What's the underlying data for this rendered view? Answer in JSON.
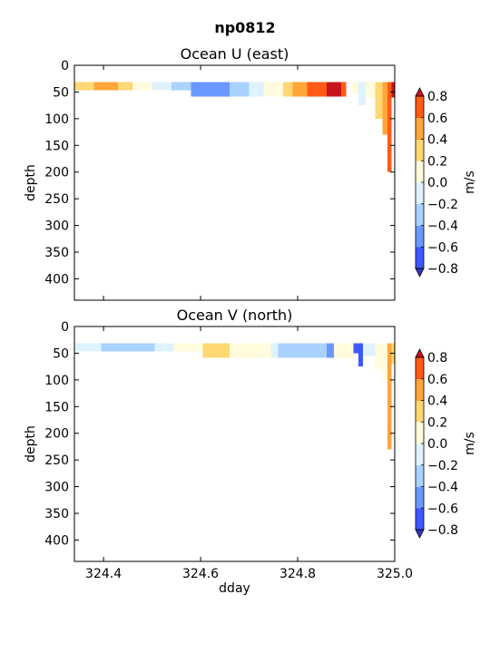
{
  "figure": {
    "suptitle": "np0812"
  },
  "colors": {
    "levels": [
      -0.8,
      -0.6,
      -0.4,
      -0.2,
      0.0,
      0.2,
      0.4,
      0.6,
      0.8
    ],
    "under": "#3333cc",
    "bins": [
      "#3f57ff",
      "#6a98ff",
      "#a9d2ff",
      "#def3ff",
      "#fffbdc",
      "#ffd874",
      "#ffa53a",
      "#ff5a16"
    ],
    "over": "#c8141b"
  },
  "chart_data": [
    {
      "type": "heatmap",
      "title": "Ocean U (east)",
      "xlabel": "",
      "ylabel": "depth",
      "xlim": [
        324.34,
        325.0
      ],
      "ylim": [
        440,
        0
      ],
      "yticks": [
        0,
        50,
        100,
        150,
        200,
        250,
        300,
        350,
        400
      ],
      "xticks": [
        324.4,
        324.6,
        324.8,
        325.0
      ],
      "xticklabels_shown": false,
      "colorbar": {
        "label": "m/s",
        "ticks": [
          -0.8,
          -0.6,
          -0.4,
          -0.2,
          0.0,
          0.2,
          0.4,
          0.6,
          0.8
        ]
      },
      "cells": [
        {
          "x": [
            324.34,
            324.35
          ],
          "depth": [
            31,
            47
          ],
          "value": 0.3
        },
        {
          "x": [
            324.35,
            324.38
          ],
          "depth": [
            31,
            47
          ],
          "value": 0.3
        },
        {
          "x": [
            324.38,
            324.43
          ],
          "depth": [
            31,
            47
          ],
          "value": 0.5
        },
        {
          "x": [
            324.43,
            324.46
          ],
          "depth": [
            31,
            47
          ],
          "value": 0.3
        },
        {
          "x": [
            324.46,
            324.5
          ],
          "depth": [
            31,
            47
          ],
          "value": 0.1
        },
        {
          "x": [
            324.5,
            324.54
          ],
          "depth": [
            31,
            47
          ],
          "value": -0.1
        },
        {
          "x": [
            324.54,
            324.58
          ],
          "depth": [
            31,
            47
          ],
          "value": -0.3
        },
        {
          "x": [
            324.58,
            324.66
          ],
          "depth": [
            31,
            59
          ],
          "value": -0.5
        },
        {
          "x": [
            324.66,
            324.7
          ],
          "depth": [
            31,
            59
          ],
          "value": -0.3
        },
        {
          "x": [
            324.7,
            324.73
          ],
          "depth": [
            31,
            59
          ],
          "value": -0.1
        },
        {
          "x": [
            324.73,
            324.77
          ],
          "depth": [
            31,
            59
          ],
          "value": 0.1
        },
        {
          "x": [
            324.77,
            324.79
          ],
          "depth": [
            31,
            59
          ],
          "value": 0.3
        },
        {
          "x": [
            324.79,
            324.82
          ],
          "depth": [
            31,
            59
          ],
          "value": 0.5
        },
        {
          "x": [
            324.82,
            324.86
          ],
          "depth": [
            31,
            59
          ],
          "value": 0.7
        },
        {
          "x": [
            324.86,
            324.89
          ],
          "depth": [
            31,
            59
          ],
          "value": 0.9
        },
        {
          "x": [
            324.89,
            324.9
          ],
          "depth": [
            31,
            59
          ],
          "value": 0.7
        },
        {
          "x": [
            324.91,
            324.925
          ],
          "depth": [
            31,
            53
          ],
          "value": 0.1
        },
        {
          "x": [
            324.925,
            324.94
          ],
          "depth": [
            31,
            75
          ],
          "value": -0.1
        },
        {
          "x": [
            324.94,
            324.96
          ],
          "depth": [
            31,
            60
          ],
          "value": 0.1
        },
        {
          "x": [
            324.96,
            324.975
          ],
          "depth": [
            31,
            100
          ],
          "value": 0.3
        },
        {
          "x": [
            324.975,
            324.985
          ],
          "depth": [
            31,
            130
          ],
          "value": 0.5
        },
        {
          "x": [
            324.985,
            324.993
          ],
          "depth": [
            31,
            200
          ],
          "value": 0.7
        },
        {
          "x": [
            324.993,
            325.0
          ],
          "depth": [
            31,
            60
          ],
          "value": 0.9
        }
      ]
    },
    {
      "type": "heatmap",
      "title": "Ocean V (north)",
      "xlabel": "dday",
      "ylabel": "depth",
      "xlim": [
        324.34,
        325.0
      ],
      "ylim": [
        440,
        0
      ],
      "yticks": [
        0,
        50,
        100,
        150,
        200,
        250,
        300,
        350,
        400
      ],
      "xticks": [
        324.4,
        324.6,
        324.8,
        325.0
      ],
      "xticklabels": [
        "324.4",
        "324.6",
        "324.8",
        "325.0"
      ],
      "xticklabels_shown": true,
      "colorbar": {
        "label": "m/s",
        "ticks": [
          -0.8,
          -0.6,
          -0.4,
          -0.2,
          0.0,
          0.2,
          0.4,
          0.6,
          0.8
        ]
      },
      "cells": [
        {
          "x": [
            324.34,
            324.395
          ],
          "depth": [
            31,
            47
          ],
          "value": -0.1
        },
        {
          "x": [
            324.395,
            324.505
          ],
          "depth": [
            31,
            47
          ],
          "value": -0.3
        },
        {
          "x": [
            324.505,
            324.545
          ],
          "depth": [
            31,
            47
          ],
          "value": -0.1
        },
        {
          "x": [
            324.545,
            324.605
          ],
          "depth": [
            31,
            47
          ],
          "value": 0.1
        },
        {
          "x": [
            324.605,
            324.66
          ],
          "depth": [
            31,
            59
          ],
          "value": 0.3
        },
        {
          "x": [
            324.66,
            324.68
          ],
          "depth": [
            31,
            59
          ],
          "value": 0.1
        },
        {
          "x": [
            324.68,
            324.745
          ],
          "depth": [
            31,
            59
          ],
          "value": 0.1
        },
        {
          "x": [
            324.745,
            324.76
          ],
          "depth": [
            31,
            59
          ],
          "value": -0.1
        },
        {
          "x": [
            324.76,
            324.86
          ],
          "depth": [
            31,
            59
          ],
          "value": -0.3
        },
        {
          "x": [
            324.86,
            324.875
          ],
          "depth": [
            31,
            59
          ],
          "value": -0.5
        },
        {
          "x": [
            324.875,
            324.915
          ],
          "depth": [
            31,
            59
          ],
          "value": 0.0
        },
        {
          "x": [
            324.915,
            324.925
          ],
          "depth": [
            31,
            50
          ],
          "value": -0.7
        },
        {
          "x": [
            324.925,
            324.935
          ],
          "depth": [
            31,
            75
          ],
          "value": -0.7
        },
        {
          "x": [
            324.935,
            324.96
          ],
          "depth": [
            31,
            55
          ],
          "value": -0.1
        },
        {
          "x": [
            324.96,
            324.975
          ],
          "depth": [
            31,
            80
          ],
          "value": 0.1
        },
        {
          "x": [
            324.975,
            324.985
          ],
          "depth": [
            31,
            100
          ],
          "value": 0.1
        },
        {
          "x": [
            324.985,
            324.993
          ],
          "depth": [
            31,
            230
          ],
          "value": 0.5
        },
        {
          "x": [
            324.993,
            325.0
          ],
          "depth": [
            31,
            70
          ],
          "value": 0.3
        }
      ]
    }
  ]
}
